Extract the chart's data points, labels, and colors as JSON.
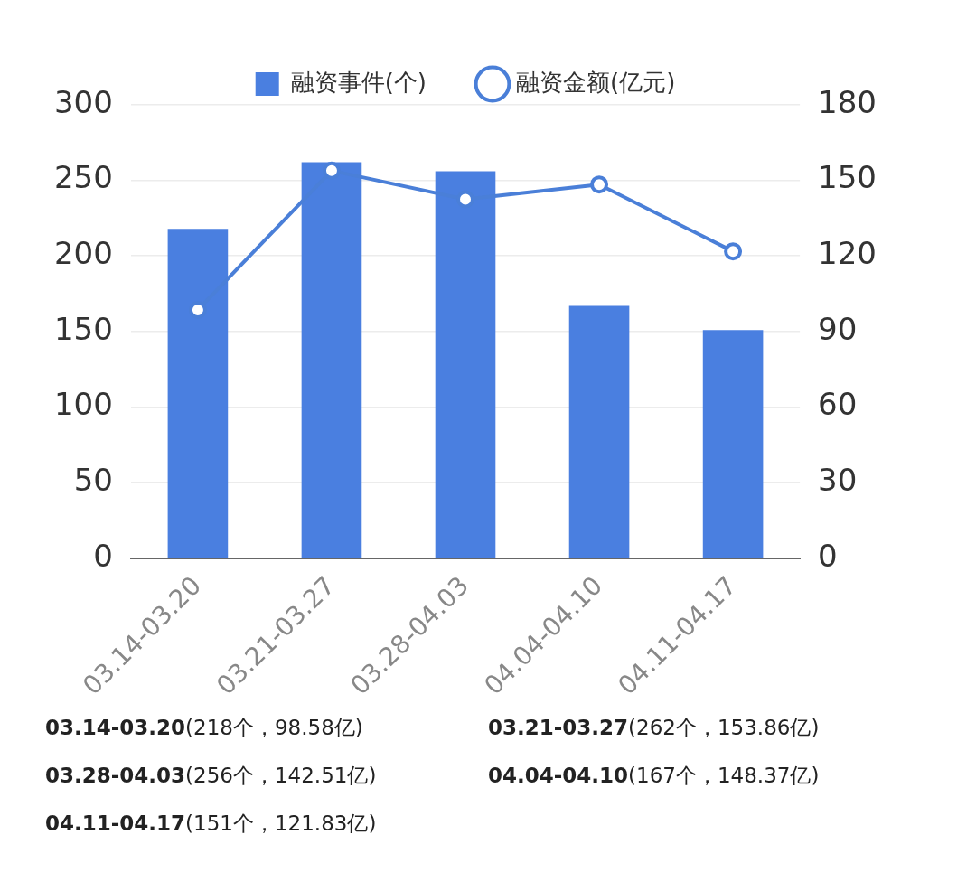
{
  "chart_data": {
    "type": "bar",
    "categories": [
      "03.14-03.20",
      "03.21-03.27",
      "03.28-04.03",
      "04.04-04.10",
      "04.11-04.17"
    ],
    "series": [
      {
        "name": "融资事件(个)",
        "color": "#4a7fe0",
        "values": [
          218,
          262,
          256,
          167,
          151
        ],
        "value_labels": [
          "(218个，",
          "(262个，",
          "(256个，",
          "(167个，",
          "(151个，"
        ]
      },
      {
        "name": "融资金额(亿元)",
        "type": "line",
        "axis": "y2",
        "color": "#4a7fd8",
        "values": [
          98.58,
          153.86,
          142.51,
          148.37,
          121.83
        ],
        "value_labels": [
          "98.58亿)",
          "153.86亿)",
          "142.51亿)",
          "148.37亿)",
          "121.83亿)"
        ]
      }
    ],
    "ylim": [
      0,
      300
    ],
    "yticks": [
      0,
      50,
      100,
      150,
      200,
      250,
      300
    ],
    "y2lim": [
      0,
      180
    ],
    "y2ticks": [
      0,
      30,
      60,
      90,
      120,
      150,
      180
    ],
    "grid": "y",
    "legend": "top",
    "marker": "circle",
    "line_style": "solid"
  }
}
